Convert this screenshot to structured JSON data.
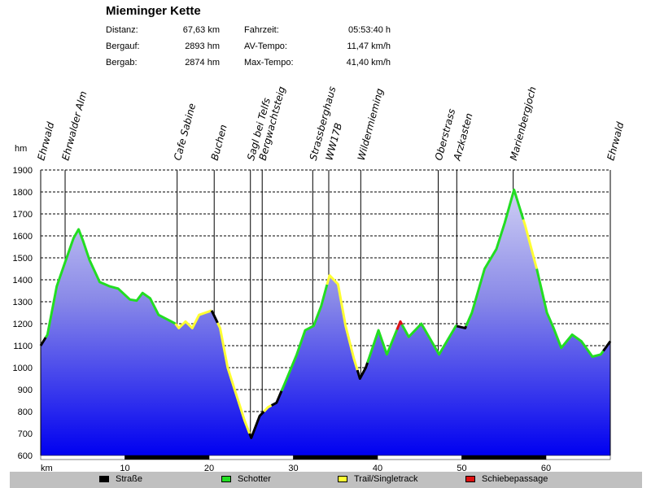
{
  "title": "Mieminger Kette",
  "stats": [
    {
      "label": "Distanz:",
      "value": "67,63 km"
    },
    {
      "label": "Bergauf:",
      "value": "2893 hm"
    },
    {
      "label": "Bergab:",
      "value": "2874 hm"
    },
    {
      "label": "Fahrzeit:",
      "value": "05:53:40 h"
    },
    {
      "label": "AV-Tempo:",
      "value": "11,47 km/h"
    },
    {
      "label": "Max-Tempo:",
      "value": "41,40 km/h"
    }
  ],
  "legend": [
    {
      "label": "Straße",
      "color": "#000000"
    },
    {
      "label": "Schotter",
      "color": "#22dd22"
    },
    {
      "label": "Trail/Singletrack",
      "color": "#ffff33"
    },
    {
      "label": "Schiebepassage",
      "color": "#dd1111"
    }
  ],
  "chart_data": {
    "type": "area",
    "title": "Mieminger Kette",
    "xlabel": "km",
    "ylabel": "hm",
    "xlim": [
      0,
      67.63
    ],
    "ylim": [
      600,
      1900
    ],
    "xticks": [
      10,
      20,
      30,
      40,
      50,
      60
    ],
    "yticks": [
      600,
      700,
      800,
      900,
      1000,
      1100,
      1200,
      1300,
      1400,
      1500,
      1600,
      1700,
      1800,
      1900
    ],
    "grid": "horizontal-dashed",
    "profile": [
      [
        0,
        1100
      ],
      [
        0.8,
        1150
      ],
      [
        1.9,
        1370
      ],
      [
        2.9,
        1480
      ],
      [
        3.9,
        1590
      ],
      [
        4.5,
        1630
      ],
      [
        5,
        1580
      ],
      [
        5.8,
        1490
      ],
      [
        7,
        1390
      ],
      [
        8.2,
        1370
      ],
      [
        9.2,
        1360
      ],
      [
        10.6,
        1310
      ],
      [
        11.4,
        1305
      ],
      [
        12.1,
        1340
      ],
      [
        13,
        1315
      ],
      [
        14,
        1240
      ],
      [
        15,
        1220
      ],
      [
        16,
        1200
      ],
      [
        16.4,
        1180
      ],
      [
        17.2,
        1210
      ],
      [
        18,
        1180
      ],
      [
        18.8,
        1240
      ],
      [
        20.3,
        1260
      ],
      [
        21.3,
        1180
      ],
      [
        22.2,
        1000
      ],
      [
        23.2,
        880
      ],
      [
        24.2,
        760
      ],
      [
        25,
        680
      ],
      [
        26,
        780
      ],
      [
        27,
        820
      ],
      [
        28,
        840
      ],
      [
        29,
        930
      ],
      [
        30.4,
        1060
      ],
      [
        31.4,
        1170
      ],
      [
        32.4,
        1190
      ],
      [
        33.3,
        1280
      ],
      [
        34.3,
        1420
      ],
      [
        35.3,
        1380
      ],
      [
        36.2,
        1190
      ],
      [
        37.2,
        1040
      ],
      [
        37.9,
        950
      ],
      [
        38.6,
        1000
      ],
      [
        40.1,
        1170
      ],
      [
        41.1,
        1060
      ],
      [
        42.7,
        1210
      ],
      [
        43.7,
        1140
      ],
      [
        45.2,
        1200
      ],
      [
        47.3,
        1060
      ],
      [
        49.3,
        1190
      ],
      [
        50.4,
        1180
      ],
      [
        51.2,
        1250
      ],
      [
        52.7,
        1450
      ],
      [
        54.1,
        1540
      ],
      [
        55.1,
        1660
      ],
      [
        56.2,
        1810
      ],
      [
        57.5,
        1650
      ],
      [
        58.9,
        1450
      ],
      [
        60.1,
        1250
      ],
      [
        60.9,
        1180
      ],
      [
        61.8,
        1090
      ],
      [
        63.1,
        1150
      ],
      [
        64.2,
        1120
      ],
      [
        65.5,
        1050
      ],
      [
        66.5,
        1060
      ],
      [
        67.63,
        1120
      ]
    ],
    "surface_segments": [
      {
        "from": 0,
        "to": 0.6,
        "type": "Straße"
      },
      {
        "from": 0.6,
        "to": 16,
        "type": "Schotter"
      },
      {
        "from": 16,
        "to": 20.3,
        "type": "Trail/Singletrack"
      },
      {
        "from": 20.3,
        "to": 21,
        "type": "Straße"
      },
      {
        "from": 21,
        "to": 24.8,
        "type": "Trail/Singletrack"
      },
      {
        "from": 24.8,
        "to": 26.5,
        "type": "Straße"
      },
      {
        "from": 26.5,
        "to": 27.4,
        "type": "Trail/Singletrack"
      },
      {
        "from": 27.4,
        "to": 28.6,
        "type": "Straße"
      },
      {
        "from": 28.6,
        "to": 34,
        "type": "Schotter"
      },
      {
        "from": 34,
        "to": 37.6,
        "type": "Trail/Singletrack"
      },
      {
        "from": 37.6,
        "to": 38.8,
        "type": "Straße"
      },
      {
        "from": 38.8,
        "to": 42.3,
        "type": "Schotter"
      },
      {
        "from": 42.3,
        "to": 42.9,
        "type": "Schiebepassage"
      },
      {
        "from": 42.9,
        "to": 49.4,
        "type": "Schotter"
      },
      {
        "from": 49.4,
        "to": 50.5,
        "type": "Straße"
      },
      {
        "from": 50.5,
        "to": 57.3,
        "type": "Schotter"
      },
      {
        "from": 57.3,
        "to": 58.9,
        "type": "Trail/Singletrack"
      },
      {
        "from": 58.9,
        "to": 66.8,
        "type": "Schotter"
      },
      {
        "from": 66.8,
        "to": 67.63,
        "type": "Straße"
      }
    ],
    "waypoints": [
      {
        "name": "Ehrwald",
        "km": 0
      },
      {
        "name": "Ehrwalder Alm",
        "km": 2.9
      },
      {
        "name": "Cafe Sabine",
        "km": 16.2
      },
      {
        "name": "Buchen",
        "km": 20.6
      },
      {
        "name": "Sagl bei Telfs",
        "km": 24.9
      },
      {
        "name": "Bergwachtsteig",
        "km": 26.3
      },
      {
        "name": "Strassberghaus",
        "km": 32.3
      },
      {
        "name": "WW17B",
        "km": 34.2
      },
      {
        "name": "Wildermieming",
        "km": 38.0
      },
      {
        "name": "Oberstrass",
        "km": 47.2
      },
      {
        "name": "Arzkasten",
        "km": 49.4
      },
      {
        "name": "Marienbergjoch",
        "km": 56.1
      },
      {
        "name": "Ehrwald",
        "km": 67.63
      }
    ]
  }
}
